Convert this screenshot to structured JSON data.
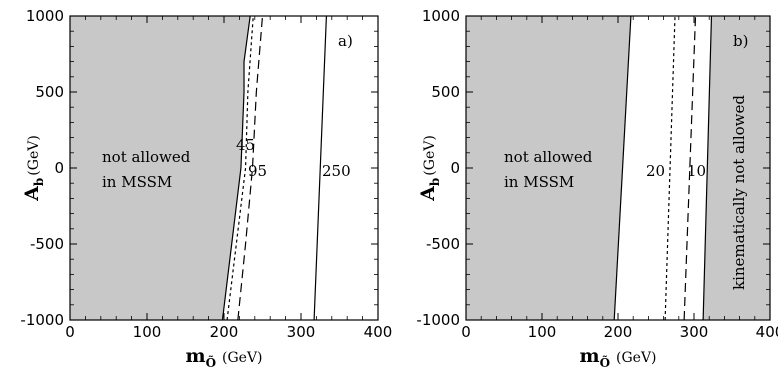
{
  "chart_data": [
    {
      "type": "line",
      "panel_label": "a)",
      "xlabel": {
        "symbol": "m",
        "sub": "Õ",
        "unit": "(GeV)"
      },
      "ylabel": {
        "symbol": "A",
        "sub": "b",
        "unit": "(GeV)"
      },
      "xlim": [
        0,
        400
      ],
      "ylim": [
        -1000,
        1000
      ],
      "xticks": [
        "0",
        "100",
        "200",
        "300",
        "400"
      ],
      "yticks": [
        "1000",
        "500",
        "0",
        "-500",
        "-1000"
      ],
      "shaded_regions": [
        {
          "label_lines": [
            "not allowed",
            "in MSSM"
          ],
          "color": "#c8c8c8",
          "boundary": [
            [
              198,
              -1000
            ],
            [
              210,
              -500
            ],
            [
              222,
              0
            ],
            [
              226,
              500
            ],
            [
              226,
              700
            ],
            [
              234,
              1000
            ]
          ]
        }
      ],
      "series": [
        {
          "style": "dotted",
          "x": [
            204,
            216,
            228,
            231,
            238
          ],
          "y": [
            -1000,
            -500,
            0,
            500,
            1000
          ],
          "label": "45"
        },
        {
          "style": "dashed",
          "x": [
            218,
            228,
            237,
            242,
            250
          ],
          "y": [
            -1000,
            -500,
            0,
            500,
            1000
          ],
          "label": "95"
        },
        {
          "style": "solid",
          "x": [
            317,
            333
          ],
          "y": [
            -1000,
            1000
          ],
          "label": "250"
        }
      ]
    },
    {
      "type": "line",
      "panel_label": "b)",
      "xlabel": {
        "symbol": "m",
        "sub": "Õ",
        "unit": "(GeV)"
      },
      "ylabel": {
        "symbol": "A",
        "sub": "b",
        "unit": "(GeV)"
      },
      "xlim": [
        0,
        400
      ],
      "ylim": [
        -1000,
        1000
      ],
      "xticks": [
        "0",
        "100",
        "200",
        "300",
        "400"
      ],
      "yticks": [
        "1000",
        "500",
        "0",
        "-500",
        "-1000"
      ],
      "shaded_regions": [
        {
          "label_lines": [
            "not allowed",
            "in MSSM"
          ],
          "color": "#c8c8c8",
          "side": "left",
          "boundary": [
            [
              195,
              -1000
            ],
            [
              217,
              1000
            ]
          ]
        },
        {
          "label_lines": [
            "kinematically not allowed"
          ],
          "color": "#c8c8c8",
          "side": "right",
          "boundary": [
            [
              312,
              -1000
            ],
            [
              323,
              1000
            ]
          ]
        }
      ],
      "series": [
        {
          "style": "dotted",
          "x": [
            262,
            275
          ],
          "y": [
            -1000,
            1000
          ],
          "label": "20"
        },
        {
          "style": "dashed",
          "x": [
            287,
            302
          ],
          "y": [
            -1000,
            1000
          ],
          "label": "10"
        }
      ]
    }
  ]
}
